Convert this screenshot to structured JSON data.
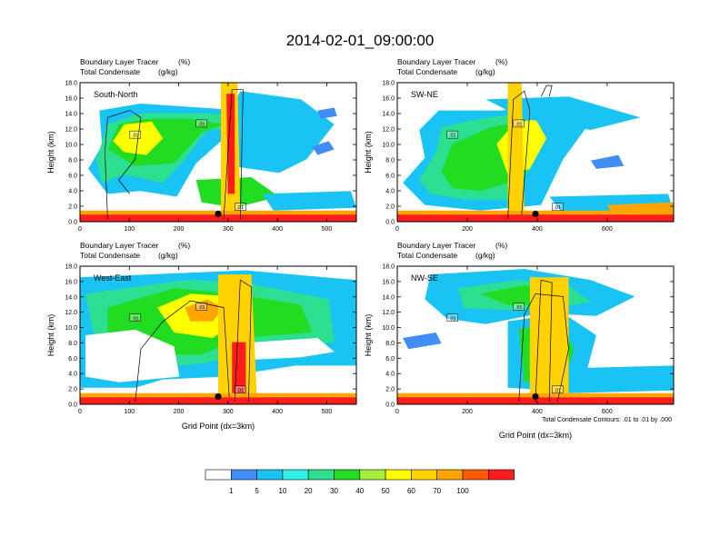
{
  "title": "2014-02-01_09:00:00",
  "footnote": "Total Condensate Contours: .01 to .01 by .000",
  "colorbar": {
    "colors": [
      "#ffffff",
      "#3f8ef5",
      "#19c4f5",
      "#2ff0e6",
      "#2ddf91",
      "#22dc22",
      "#a6ee3a",
      "#ffff00",
      "#ffd200",
      "#ffa500",
      "#ff5b00",
      "#ff1c1c"
    ],
    "labels": [
      "1",
      "5",
      "10",
      "20",
      "30",
      "40",
      "50",
      "60",
      "70",
      "100"
    ]
  },
  "chart_data": [
    {
      "type": "heatmap",
      "name": "South-North",
      "panel_label": "South-North",
      "subtitle_line1": "Boundary Layer Tracer",
      "subtitle_unit1": "(%)",
      "subtitle_line2": "Total Condensate",
      "subtitle_unit2": "(g/kg)",
      "xlabel": "",
      "ylabel": "Height (km)",
      "xlim": [
        0,
        560
      ],
      "ylim": [
        0,
        18
      ],
      "x_ticks": [
        0,
        100,
        200,
        300,
        400,
        500
      ],
      "y_tick_labels": [
        "0.0",
        "2.0",
        "4.0",
        "6.0",
        "8.0",
        "10.0",
        "12.0",
        "14.0",
        "16.0",
        "18.0"
      ],
      "marker": {
        "x": 280,
        "y": 1.0
      },
      "contour_label": ".01"
    },
    {
      "type": "heatmap",
      "name": "SW-NE",
      "panel_label": "SW-NE",
      "subtitle_line1": "Boundary Layer Tracer",
      "subtitle_unit1": "(%)",
      "subtitle_line2": "Total Condensate",
      "subtitle_unit2": "(g/kg)",
      "xlabel": "",
      "ylabel": "Height (km)",
      "xlim": [
        0,
        790
      ],
      "ylim": [
        0,
        18
      ],
      "x_ticks": [
        0,
        200,
        400,
        600
      ],
      "y_tick_labels": [
        "0.0",
        "2.0",
        "4.0",
        "6.0",
        "8.0",
        "10.0",
        "12.0",
        "14.0",
        "16.0",
        "18.0"
      ],
      "marker": {
        "x": 395,
        "y": 1.0
      },
      "contour_label": ".01"
    },
    {
      "type": "heatmap",
      "name": "West-East",
      "panel_label": "West-East",
      "subtitle_line1": "Boundary Layer Tracer",
      "subtitle_unit1": "(%)",
      "subtitle_line2": "Total Condensate",
      "subtitle_unit2": "(g/kg)",
      "xlabel": "Grid Point (dx=3km)",
      "ylabel": "Height (km)",
      "xlim": [
        0,
        560
      ],
      "ylim": [
        0,
        18
      ],
      "x_ticks": [
        0,
        100,
        200,
        300,
        400,
        500
      ],
      "y_tick_labels": [
        "0.0",
        "2.0",
        "4.0",
        "6.0",
        "8.0",
        "10.0",
        "12.0",
        "14.0",
        "16.0",
        "18.0"
      ],
      "marker": {
        "x": 280,
        "y": 1.0
      },
      "contour_label": ".01"
    },
    {
      "type": "heatmap",
      "name": "NW-SE",
      "panel_label": "NW-SE",
      "subtitle_line1": "Boundary Layer Tracer",
      "subtitle_unit1": "(%)",
      "subtitle_line2": "Total Condensate",
      "subtitle_unit2": "(g/kg)",
      "xlabel": "Grid Point (dx=3km)",
      "ylabel": "Height (km)",
      "xlim": [
        0,
        790
      ],
      "ylim": [
        0,
        18
      ],
      "x_ticks": [
        0,
        200,
        400,
        600
      ],
      "y_tick_labels": [
        "0.0",
        "2.0",
        "4.0",
        "6.0",
        "8.0",
        "10.0",
        "12.0",
        "14.0",
        "16.0",
        "18.0"
      ],
      "marker": {
        "x": 395,
        "y": 1.0
      },
      "contour_label": ".01"
    }
  ]
}
